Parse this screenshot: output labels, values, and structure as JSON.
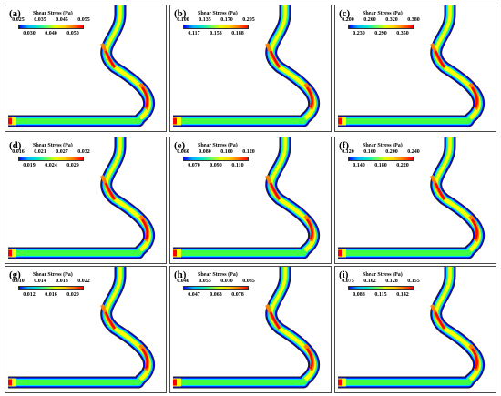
{
  "legend_title": "Shear Stress (Pa)",
  "colors": {
    "blue": "#0000ff",
    "cyan": "#00d8ff",
    "green": "#40ff40",
    "yellow": "#ffff00",
    "orange": "#ff8000",
    "red": "#ff0000"
  },
  "panels": [
    {
      "label": "(a)",
      "ticks_top": [
        "0.025",
        "0.035",
        "0.045",
        "0.055"
      ],
      "ticks_bottom": [
        "0.030",
        "0.040",
        "0.050"
      ]
    },
    {
      "label": "(b)",
      "ticks_top": [
        "0.100",
        "0.135",
        "0.170",
        "0.205"
      ],
      "ticks_bottom": [
        "0.117",
        "0.153",
        "0.188"
      ]
    },
    {
      "label": "(c)",
      "ticks_top": [
        "0.200",
        "0.260",
        "0.320",
        "0.380"
      ],
      "ticks_bottom": [
        "0.230",
        "0.290",
        "0.350"
      ]
    },
    {
      "label": "(d)",
      "ticks_top": [
        "0.016",
        "0.021",
        "0.027",
        "0.032"
      ],
      "ticks_bottom": [
        "0.019",
        "0.024",
        "0.029"
      ]
    },
    {
      "label": "(e)",
      "ticks_top": [
        "0.060",
        "0.080",
        "0.100",
        "0.120"
      ],
      "ticks_bottom": [
        "0.070",
        "0.090",
        "0.110"
      ]
    },
    {
      "label": "(f)",
      "ticks_top": [
        "0.120",
        "0.160",
        "0.200",
        "0.240"
      ],
      "ticks_bottom": [
        "0.140",
        "0.180",
        "0.220"
      ]
    },
    {
      "label": "(g)",
      "ticks_top": [
        "0.010",
        "0.014",
        "0.018",
        "0.022"
      ],
      "ticks_bottom": [
        "0.012",
        "0.016",
        "0.020"
      ]
    },
    {
      "label": "(h)",
      "ticks_top": [
        "0.040",
        "0.055",
        "0.070",
        "0.085"
      ],
      "ticks_bottom": [
        "0.047",
        "0.063",
        "0.078"
      ]
    },
    {
      "label": "(i)",
      "ticks_top": [
        "0.075",
        "0.102",
        "0.128",
        "0.155"
      ],
      "ticks_bottom": [
        "0.088",
        "0.115",
        "0.142"
      ]
    }
  ]
}
